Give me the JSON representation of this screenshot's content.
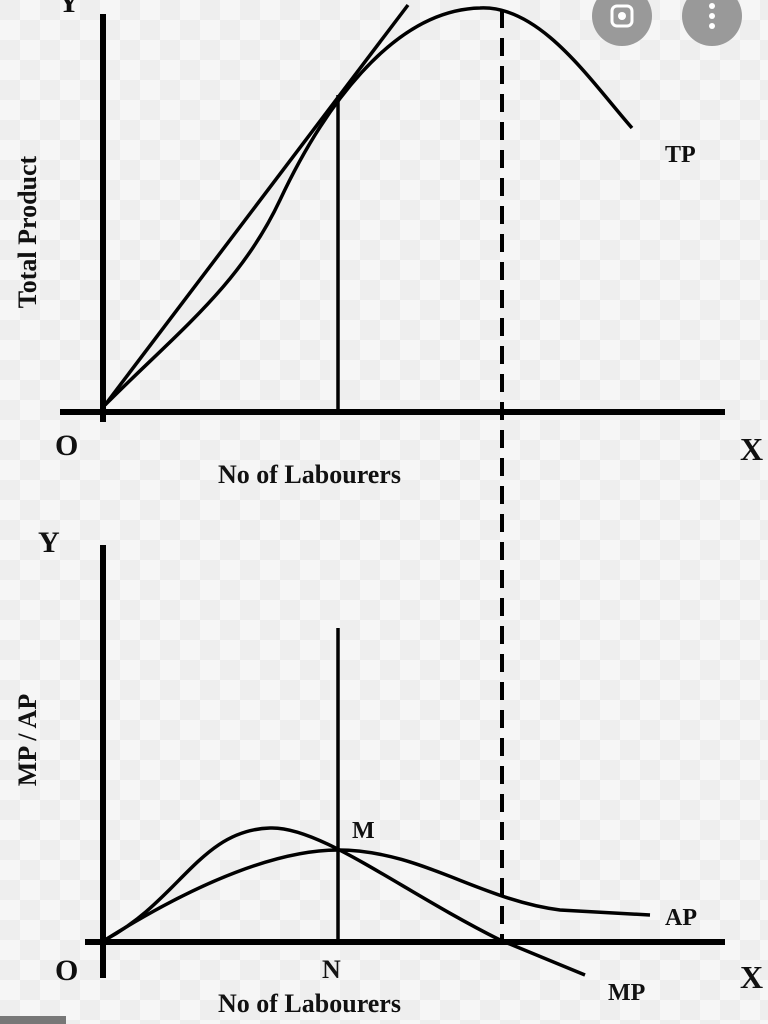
{
  "top_graph": {
    "y_axis": "Y",
    "y_label": "Total Product",
    "origin": "O",
    "x_axis": "X",
    "x_label": "No of Labourers",
    "curve": "TP"
  },
  "bottom_graph": {
    "y_axis": "Y",
    "y_label": "MP / AP",
    "point": "M",
    "origin": "O",
    "point_x": "N",
    "x_axis": "X",
    "x_label": "No of Labourers",
    "curve_ap": "AP",
    "curve_mp": "MP"
  }
}
